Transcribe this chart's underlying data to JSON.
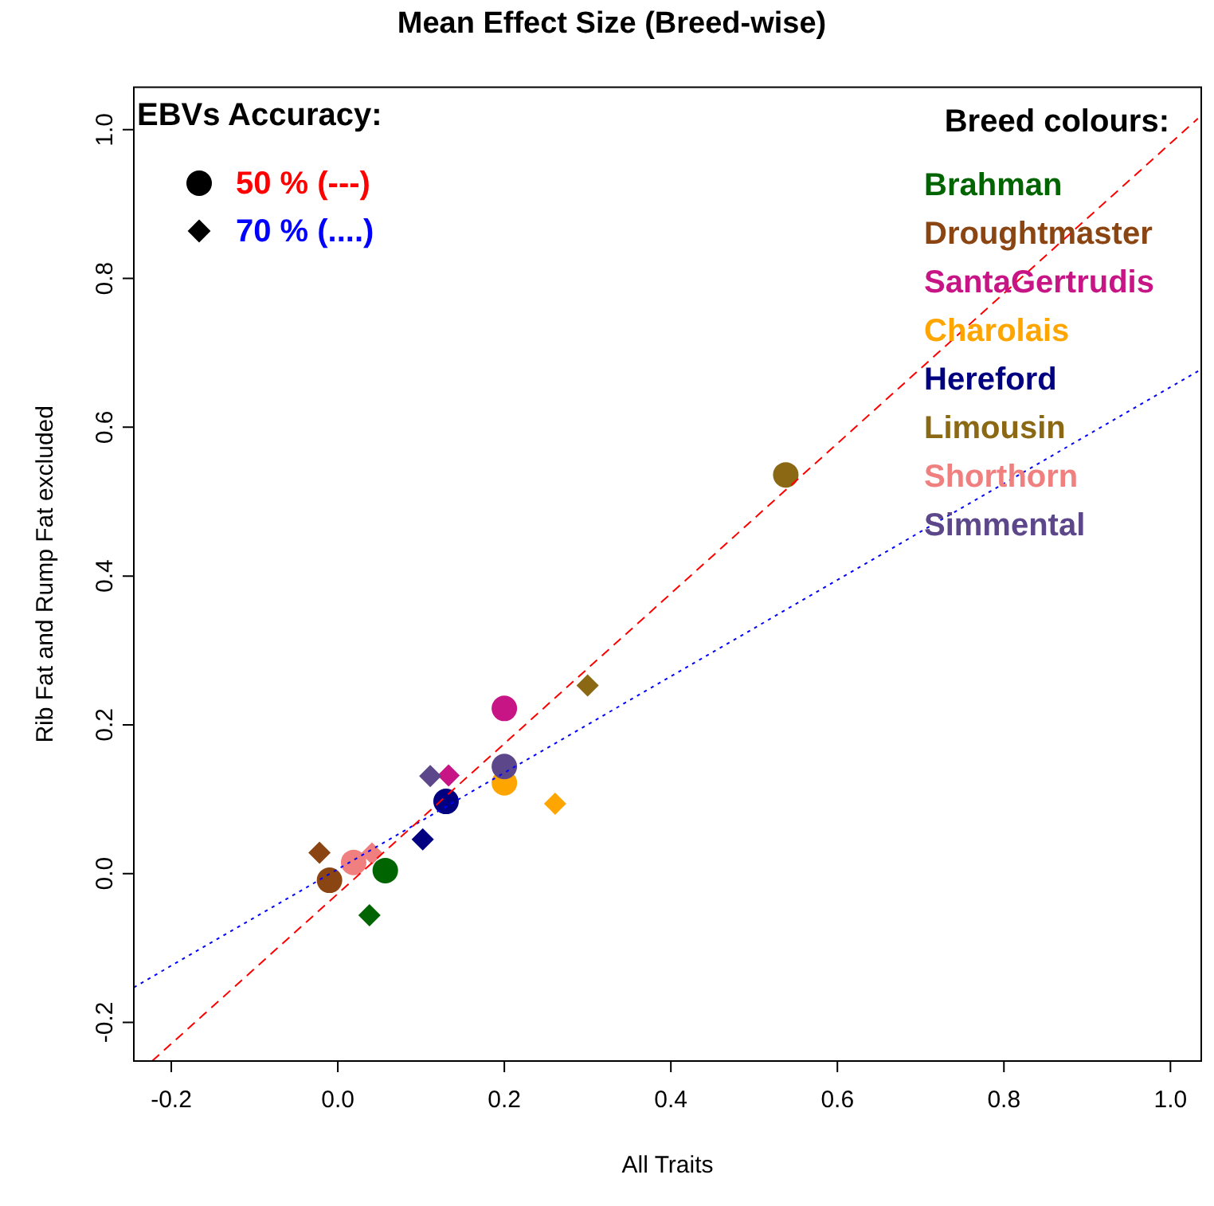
{
  "chart_data": {
    "type": "scatter",
    "title": "Mean Effect Size (Breed-wise)",
    "xlabel": "All Traits",
    "ylabel": "Rib Fat and Rump Fat excluded",
    "xlim": [
      -0.245,
      1.037
    ],
    "ylim": [
      -0.252,
      1.057
    ],
    "xticks": [
      -0.2,
      {
        "value": 0,
        "label": "0.0"
      },
      0.2,
      0.4,
      0.6,
      0.8,
      {
        "value": 1,
        "label": "1.0"
      }
    ],
    "yticks": [
      -0.2,
      {
        "value": 0,
        "label": "0.0"
      },
      0.2,
      0.4,
      0.6,
      0.8,
      {
        "value": 1,
        "label": "1.0"
      }
    ],
    "grid": false,
    "legend": "top left",
    "annotations": [
      "EBVs Accuracy:",
      "Breed colours:"
    ],
    "series": [
      {
        "name": "Brahman",
        "color": "#006400",
        "marker": "circle",
        "x": [
          0.057
        ],
        "values": [
          0.004
        ]
      },
      {
        "color": "#006400",
        "marker": "diamond",
        "x": [
          0.038
        ],
        "values": [
          -0.056
        ]
      },
      {
        "name": "Droughtmaster",
        "color": "#8b4513",
        "marker": "circle",
        "x": [
          -0.01
        ],
        "values": [
          -0.009
        ]
      },
      {
        "color": "#8b4513",
        "marker": "diamond",
        "x": [
          -0.022
        ],
        "values": [
          0.028
        ]
      },
      {
        "name": "SantaGertrudis",
        "color": "#c71585",
        "marker": "circle",
        "x": [
          0.2
        ],
        "values": [
          0.222
        ]
      },
      {
        "color": "#c71585",
        "marker": "diamond",
        "x": [
          0.133
        ],
        "values": [
          0.132
        ]
      },
      {
        "name": "Charolais",
        "color": "#ffa500",
        "marker": "circle",
        "x": [
          0.2
        ],
        "values": [
          0.122
        ]
      },
      {
        "color": "#ffa500",
        "marker": "diamond",
        "x": [
          0.261
        ],
        "values": [
          0.094
        ]
      },
      {
        "name": "Hereford",
        "color": "#000080",
        "marker": "circle",
        "x": [
          0.13
        ],
        "values": [
          0.097
        ]
      },
      {
        "color": "#000080",
        "marker": "diamond",
        "x": [
          0.102
        ],
        "values": [
          0.046
        ]
      },
      {
        "name": "Limousin",
        "color": "#8b6914",
        "marker": "circle",
        "x": [
          0.538
        ],
        "values": [
          0.536
        ]
      },
      {
        "color": "#8b6914",
        "marker": "diamond",
        "x": [
          0.3
        ],
        "values": [
          0.253
        ]
      },
      {
        "name": "Shorthorn",
        "color": "#f08080",
        "marker": "circle",
        "x": [
          0.019
        ],
        "values": [
          0.015
        ]
      },
      {
        "color": "#f08080",
        "marker": "diamond",
        "x": [
          0.041
        ],
        "values": [
          0.027
        ]
      },
      {
        "name": "Simmental",
        "color": "#5d478b",
        "marker": "circle",
        "x": [
          0.2
        ],
        "values": [
          0.144
        ]
      },
      {
        "color": "#5d478b",
        "marker": "diamond",
        "x": [
          0.111
        ],
        "values": [
          0.131
        ]
      },
      {
        "type": "line",
        "name": "50 % (---)",
        "color": "#ff0000",
        "line_style": "dashed",
        "marker": "none",
        "x": [
          -0.223,
          1.033
        ],
        "values": [
          -0.252,
          1.015
        ]
      },
      {
        "type": "line",
        "name": "70 % (....)",
        "color": "#0000ff",
        "line_style": "dotted",
        "marker": "none",
        "x": [
          -0.245,
          1.037
        ],
        "values": [
          -0.153,
          0.678
        ]
      }
    ]
  }
}
